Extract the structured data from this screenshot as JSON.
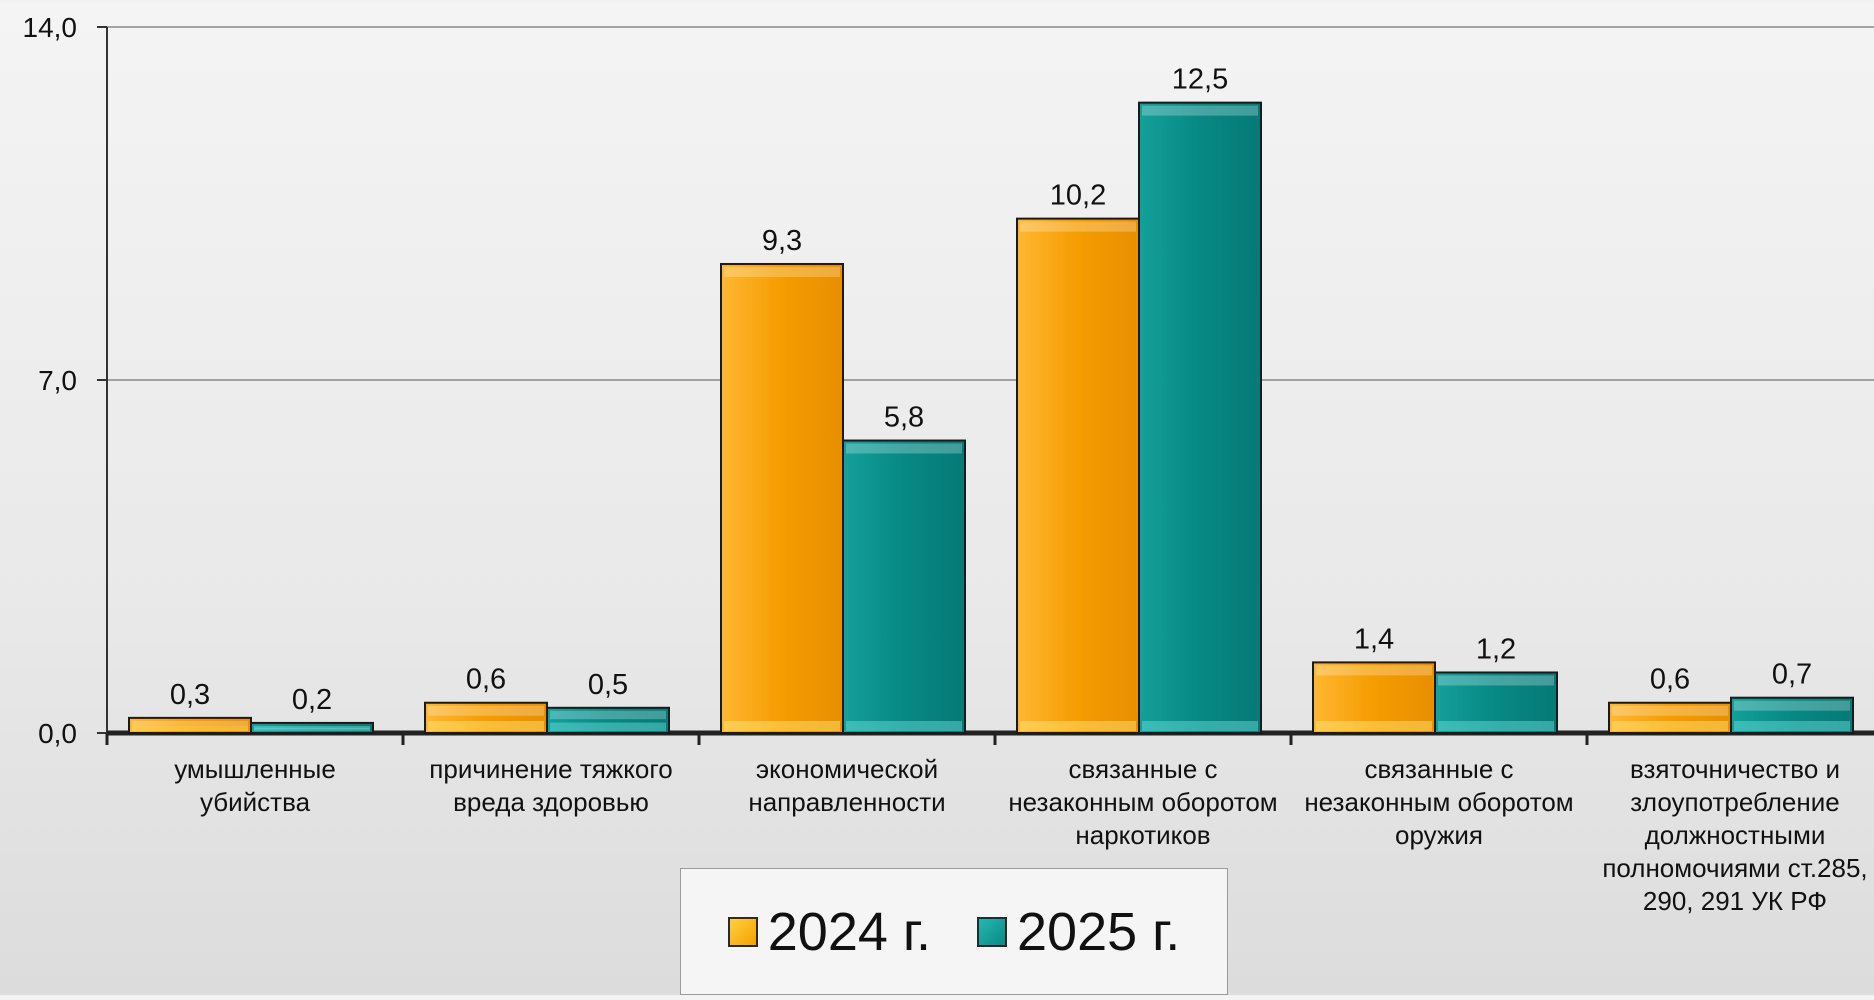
{
  "chart_data": {
    "type": "bar",
    "categories": [
      [
        "умышленные",
        "убийства"
      ],
      [
        "причинение тяжкого",
        "вреда здоровью"
      ],
      [
        "экономической",
        "направленности"
      ],
      [
        "связанные с",
        "незаконным оборотом",
        "наркотиков"
      ],
      [
        "связанные с",
        "незаконным оборотом",
        "оружия"
      ],
      [
        "взяточничество и",
        "злоупотребление",
        "должностными",
        "полномочиями ст.285,",
        "290, 291 УК РФ"
      ]
    ],
    "series": [
      {
        "name": "2024 г.",
        "values": [
          0.3,
          0.6,
          9.3,
          10.2,
          1.4,
          0.6
        ],
        "labels": [
          "0,3",
          "0,6",
          "9,3",
          "10,2",
          "1,4",
          "0,6"
        ],
        "color": "#f7a000"
      },
      {
        "name": "2025 г.",
        "values": [
          0.2,
          0.5,
          5.8,
          12.5,
          1.2,
          0.7
        ],
        "labels": [
          "0,2",
          "0,5",
          "5,8",
          "12,5",
          "1,2",
          "0,7"
        ],
        "color": "#0a8a86"
      }
    ],
    "ylim": [
      0,
      14
    ],
    "yticks": [
      0,
      7,
      14
    ],
    "ytick_labels": [
      "0,0",
      "7,0",
      "14,0"
    ],
    "grid": true,
    "legend_position": "bottom-center"
  }
}
